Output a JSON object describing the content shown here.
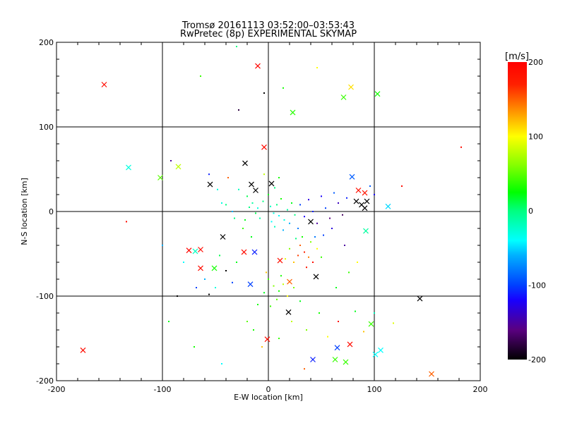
{
  "chart_data": {
    "type": "scatter",
    "title": "Tromsø 20161113 03:52:00–03:53:43",
    "subtitle": "RwPretec (8p) EXPERIMENTAL SKYMAP",
    "xlabel": "E-W location [km]",
    "ylabel": "N-S location [km]",
    "xlim": [
      -200,
      200
    ],
    "ylim": [
      -200,
      200
    ],
    "xticks": [
      -200,
      -100,
      0,
      100,
      200
    ],
    "yticks": [
      -200,
      -100,
      0,
      100,
      200
    ],
    "grid": true,
    "colorbar": {
      "label": "[m/s]",
      "range": [
        -200,
        200
      ],
      "ticks": [
        -200,
        -100,
        0,
        100,
        200
      ],
      "colormap": "black-purple-blue-cyan-green-yellow-red"
    },
    "crosses": [
      [
        -155,
        150,
        190
      ],
      [
        -10,
        172,
        195
      ],
      [
        78,
        147,
        110
      ],
      [
        71,
        135,
        40
      ],
      [
        103,
        139,
        30
      ],
      [
        23,
        117,
        35
      ],
      [
        -132,
        52,
        -30
      ],
      [
        -85,
        53,
        80
      ],
      [
        -102,
        40,
        50
      ],
      [
        -4,
        76,
        190
      ],
      [
        -22,
        57,
        -200
      ],
      [
        -55,
        32,
        -200
      ],
      [
        79,
        41,
        -90
      ],
      [
        85,
        25,
        185
      ],
      [
        91,
        22,
        180
      ],
      [
        113,
        6,
        -50
      ],
      [
        83,
        12,
        -200
      ],
      [
        88,
        8,
        -200
      ],
      [
        93,
        12,
        -200
      ],
      [
        91,
        4,
        -200
      ],
      [
        -43,
        -30,
        -200
      ],
      [
        92,
        -23,
        -10
      ],
      [
        -23,
        -48,
        190
      ],
      [
        -64,
        -45,
        190
      ],
      [
        -75,
        -46,
        195
      ],
      [
        -69,
        -47,
        -20
      ],
      [
        -64,
        -67,
        190
      ],
      [
        -51,
        -67,
        30
      ],
      [
        -13,
        -48,
        -110
      ],
      [
        45,
        -77,
        -200
      ],
      [
        -17,
        -86,
        -100
      ],
      [
        143,
        -103,
        -200
      ],
      [
        19,
        -119,
        -200
      ],
      [
        97,
        -133,
        40
      ],
      [
        -1,
        -151,
        190
      ],
      [
        77,
        -157,
        190
      ],
      [
        65,
        -161,
        -100
      ],
      [
        42,
        -175,
        -110
      ],
      [
        63,
        -175,
        40
      ],
      [
        73,
        -178,
        40
      ],
      [
        106,
        -164,
        -40
      ],
      [
        101,
        -169,
        -40
      ],
      [
        154,
        -192,
        150
      ],
      [
        -175,
        -164,
        190
      ],
      [
        11,
        -58,
        185
      ],
      [
        20,
        -83,
        150
      ],
      [
        40,
        -12,
        -200
      ],
      [
        -16,
        32,
        -200
      ],
      [
        -12,
        25,
        -200
      ],
      [
        3,
        33,
        -200
      ]
    ],
    "dots": [
      [
        -30,
        195,
        0
      ],
      [
        -40,
        8,
        0
      ],
      [
        -28,
        26,
        -20
      ],
      [
        -20,
        18,
        10
      ],
      [
        -15,
        10,
        -10
      ],
      [
        -10,
        4,
        -30
      ],
      [
        -5,
        12,
        0
      ],
      [
        0,
        20,
        20
      ],
      [
        2,
        6,
        -20
      ],
      [
        5,
        -2,
        -30
      ],
      [
        8,
        8,
        0
      ],
      [
        10,
        -5,
        -40
      ],
      [
        12,
        15,
        30
      ],
      [
        15,
        -10,
        -30
      ],
      [
        18,
        2,
        -10
      ],
      [
        20,
        -14,
        -60
      ],
      [
        22,
        10,
        20
      ],
      [
        25,
        -4,
        0
      ],
      [
        -8,
        -8,
        -10
      ],
      [
        -12,
        -2,
        10
      ],
      [
        -18,
        5,
        0
      ],
      [
        -22,
        -10,
        20
      ],
      [
        3,
        -12,
        -40
      ],
      [
        6,
        -18,
        -20
      ],
      [
        14,
        -22,
        -60
      ],
      [
        28,
        -20,
        -80
      ],
      [
        30,
        8,
        -100
      ],
      [
        34,
        -6,
        -120
      ],
      [
        38,
        14,
        -130
      ],
      [
        42,
        0,
        -110
      ],
      [
        46,
        -14,
        -150
      ],
      [
        50,
        18,
        -120
      ],
      [
        54,
        4,
        -100
      ],
      [
        58,
        -8,
        -160
      ],
      [
        62,
        22,
        -90
      ],
      [
        66,
        10,
        -140
      ],
      [
        70,
        -4,
        -170
      ],
      [
        74,
        16,
        -110
      ],
      [
        60,
        -20,
        -130
      ],
      [
        52,
        -28,
        -100
      ],
      [
        44,
        -30,
        -80
      ],
      [
        30,
        -40,
        150
      ],
      [
        34,
        -48,
        170
      ],
      [
        38,
        -54,
        140
      ],
      [
        42,
        -60,
        190
      ],
      [
        28,
        -52,
        160
      ],
      [
        24,
        -60,
        120
      ],
      [
        36,
        -66,
        180
      ],
      [
        46,
        -44,
        100
      ],
      [
        20,
        -44,
        60
      ],
      [
        16,
        -56,
        90
      ],
      [
        50,
        -54,
        40
      ],
      [
        32,
        -30,
        30
      ],
      [
        40,
        -36,
        60
      ],
      [
        26,
        -32,
        0
      ],
      [
        0,
        -80,
        40
      ],
      [
        5,
        -88,
        60
      ],
      [
        10,
        -94,
        30
      ],
      [
        14,
        -86,
        80
      ],
      [
        -4,
        -96,
        20
      ],
      [
        8,
        -104,
        50
      ],
      [
        18,
        -100,
        100
      ],
      [
        2,
        -112,
        40
      ],
      [
        -2,
        -72,
        120
      ],
      [
        12,
        -76,
        30
      ],
      [
        24,
        -90,
        60
      ],
      [
        30,
        -106,
        20
      ],
      [
        -10,
        -110,
        30
      ],
      [
        -60,
        -80,
        -60
      ],
      [
        -50,
        -90,
        -30
      ],
      [
        -40,
        -70,
        -200
      ],
      [
        -56,
        -98,
        -200
      ],
      [
        -30,
        -60,
        20
      ],
      [
        -46,
        -52,
        10
      ],
      [
        -34,
        -84,
        -100
      ],
      [
        -80,
        -60,
        -40
      ],
      [
        -68,
        -90,
        -100
      ],
      [
        -24,
        -20,
        40
      ],
      [
        -32,
        -8,
        0
      ],
      [
        -44,
        10,
        -30
      ],
      [
        -56,
        44,
        -110
      ],
      [
        -48,
        26,
        -30
      ],
      [
        -86,
        -100,
        -200
      ],
      [
        -94,
        -130,
        20
      ],
      [
        -20,
        -130,
        50
      ],
      [
        -14,
        -140,
        30
      ],
      [
        -6,
        -160,
        120
      ],
      [
        10,
        -150,
        40
      ],
      [
        22,
        -130,
        80
      ],
      [
        36,
        -140,
        60
      ],
      [
        48,
        -120,
        30
      ],
      [
        56,
        -148,
        100
      ],
      [
        66,
        -130,
        190
      ],
      [
        82,
        -118,
        20
      ],
      [
        90,
        -142,
        120
      ],
      [
        100,
        -120,
        -20
      ],
      [
        118,
        -132,
        90
      ],
      [
        -70,
        -160,
        30
      ],
      [
        -44,
        -180,
        -40
      ],
      [
        34,
        -186,
        150
      ],
      [
        -64,
        160,
        40
      ],
      [
        -28,
        120,
        -180
      ],
      [
        -4,
        140,
        -200
      ],
      [
        14,
        146,
        30
      ],
      [
        46,
        170,
        100
      ],
      [
        -92,
        60,
        -150
      ],
      [
        -100,
        -40,
        -60
      ],
      [
        -134,
        -12,
        190
      ],
      [
        182,
        76,
        190
      ],
      [
        126,
        30,
        190
      ],
      [
        72,
        -40,
        -150
      ],
      [
        84,
        -60,
        100
      ],
      [
        76,
        -72,
        40
      ],
      [
        64,
        -90,
        20
      ],
      [
        96,
        30,
        -90
      ],
      [
        100,
        20,
        -120
      ],
      [
        -38,
        40,
        150
      ],
      [
        -4,
        44,
        80
      ],
      [
        10,
        40,
        30
      ],
      [
        6,
        28,
        0
      ],
      [
        -34,
        0,
        -60
      ],
      [
        -16,
        -30,
        20
      ]
    ]
  }
}
